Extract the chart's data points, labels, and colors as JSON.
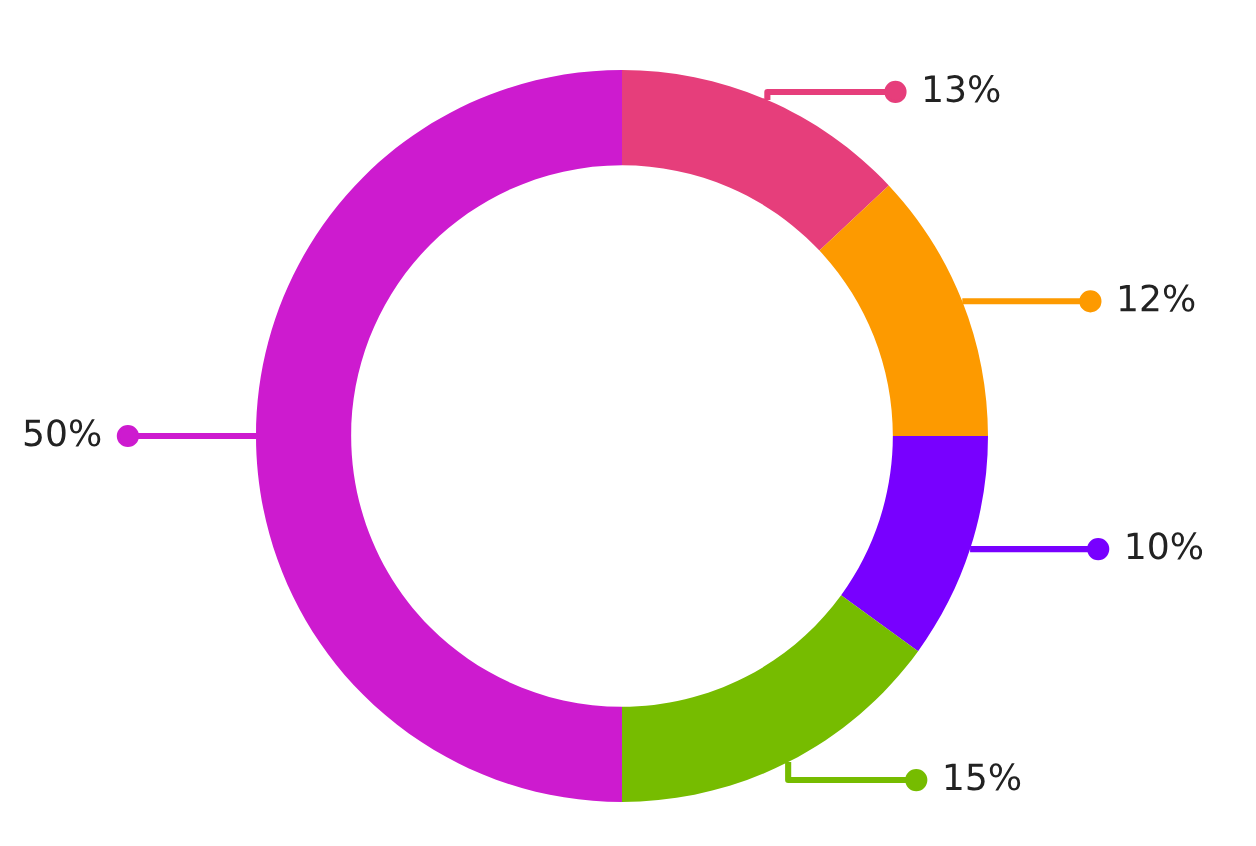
{
  "chart_data": {
    "type": "donut",
    "categories": [
      null,
      null,
      null,
      null,
      null
    ],
    "values": [
      13,
      12,
      10,
      15,
      50
    ],
    "colors": [
      "#e63e7b",
      "#fd9a00",
      "#7800ff",
      "#76bc00",
      "#cd1bcf"
    ],
    "value_labels": [
      "13%",
      "12%",
      "10%",
      "15%",
      "50%"
    ]
  }
}
